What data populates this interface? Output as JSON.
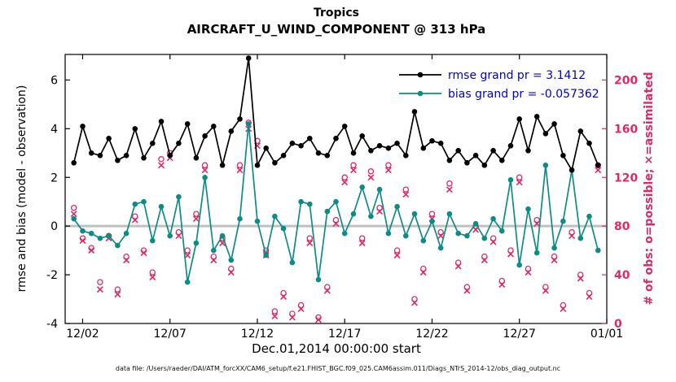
{
  "caption": "data file: /Users/raeder/DAI/ATM_forcXX/CAM6_setup/f.e21.FHIST_BGC.f09_025.CAM6assim.011/Diags_NTrS_2014-12/obs_diag_output.nc",
  "colors": {
    "rmse": "#000000",
    "bias": "#0d8c85",
    "obs": "#dd2a66",
    "legend_text": "#0000cc",
    "zero_line": "#c0c0c0",
    "axis": "#000000"
  },
  "legend": [
    {
      "series": "rmse",
      "label": "rmse grand pr = 3.1412",
      "color": "#000000"
    },
    {
      "series": "bias",
      "label": "bias grand pr = -0.057362",
      "color": "#0d8c85"
    }
  ],
  "axes": {
    "left_ticks": [
      -4,
      -2,
      0,
      2,
      4,
      6
    ],
    "right_ticks": [
      0,
      40,
      80,
      120,
      160,
      200
    ],
    "x_ticks": [
      {
        "t": 1,
        "label": "12/02"
      },
      {
        "t": 6,
        "label": "12/07"
      },
      {
        "t": 11,
        "label": "12/12"
      },
      {
        "t": 16,
        "label": "12/17"
      },
      {
        "t": 21,
        "label": "12/22"
      },
      {
        "t": 26,
        "label": "12/27"
      },
      {
        "t": 31,
        "label": "01/01"
      }
    ]
  },
  "chart_data": {
    "type": "line",
    "title": "Tropics",
    "subtitle": "AIRCRAFT_U_WIND_COMPONENT @ 313 hPa",
    "xlabel": "Dec.01,2014 00:00:00 start",
    "ylabel_left": "rmse and bias (model - observation)",
    "ylabel_right": "# of obs: o=possible; ×=assimilated",
    "xlim": [
      0,
      31
    ],
    "ylim_left": [
      -4,
      7.05
    ],
    "ylim_right": [
      0,
      221
    ],
    "x_units": "days since Dec.01,2014 00:00:00",
    "x": [
      0.5,
      1,
      1.5,
      2,
      2.5,
      3,
      3.5,
      4,
      4.5,
      5,
      5.5,
      6,
      6.5,
      7,
      7.5,
      8,
      8.5,
      9,
      9.5,
      10,
      10.5,
      11,
      11.5,
      12,
      12.5,
      13,
      13.5,
      14,
      14.5,
      15,
      15.5,
      16,
      16.5,
      17,
      17.5,
      18,
      18.5,
      19,
      19.5,
      20,
      20.5,
      21,
      21.5,
      22,
      22.5,
      23,
      23.5,
      24,
      24.5,
      25,
      25.5,
      26,
      26.5,
      27,
      27.5,
      28,
      28.5,
      29,
      29.5,
      30,
      30.5
    ],
    "series": [
      {
        "name": "rmse",
        "axis": "left",
        "style": "line+dot",
        "grand_value": 3.1412,
        "values": [
          2.6,
          4.1,
          3.0,
          2.9,
          3.6,
          2.7,
          2.9,
          4.0,
          2.8,
          3.4,
          4.3,
          2.9,
          3.4,
          4.2,
          2.8,
          3.7,
          4.1,
          2.5,
          3.9,
          4.4,
          6.9,
          2.5,
          3.2,
          2.6,
          2.9,
          3.4,
          3.3,
          3.6,
          3.0,
          2.9,
          3.6,
          4.1,
          3.0,
          3.7,
          3.1,
          3.3,
          3.2,
          3.4,
          2.9,
          4.7,
          3.2,
          3.5,
          3.4,
          2.7,
          3.1,
          2.6,
          2.9,
          2.5,
          3.1,
          2.7,
          3.3,
          4.4,
          3.1,
          4.5,
          3.8,
          4.2,
          2.9,
          2.3,
          3.9,
          3.4,
          2.5
        ]
      },
      {
        "name": "bias",
        "axis": "left",
        "style": "line+dot",
        "grand_value": -0.057362,
        "values": [
          0.3,
          -0.2,
          -0.3,
          -0.5,
          -0.4,
          -0.8,
          -0.3,
          0.9,
          1.0,
          -0.6,
          0.8,
          -0.4,
          1.2,
          -2.3,
          -0.7,
          2.0,
          -1.0,
          -0.4,
          -1.4,
          0.3,
          4.2,
          0.2,
          -1.2,
          0.4,
          -0.1,
          -1.5,
          1.0,
          0.9,
          -2.2,
          0.6,
          1.0,
          -0.3,
          0.5,
          1.6,
          0.4,
          1.5,
          -0.3,
          0.8,
          -0.4,
          0.5,
          -0.6,
          0.2,
          -0.9,
          0.5,
          -0.3,
          -0.4,
          0.1,
          -0.5,
          0.3,
          -0.2,
          1.9,
          -1.6,
          0.7,
          -1.1,
          2.5,
          -0.9,
          0.2,
          2.3,
          -0.5,
          0.4,
          -1.0
        ]
      },
      {
        "name": "possible",
        "axis": "right",
        "style": "marker-o",
        "values": [
          95,
          70,
          62,
          34,
          72,
          28,
          55,
          88,
          60,
          42,
          135,
          140,
          75,
          60,
          90,
          130,
          55,
          70,
          45,
          130,
          165,
          150,
          60,
          10,
          25,
          8,
          15,
          70,
          5,
          30,
          85,
          120,
          130,
          70,
          125,
          95,
          130,
          60,
          110,
          20,
          45,
          90,
          75,
          115,
          50,
          30,
          80,
          55,
          70,
          35,
          60,
          120,
          45,
          85,
          30,
          55,
          15,
          75,
          40,
          25,
          130
        ]
      },
      {
        "name": "assimilated",
        "axis": "right",
        "style": "marker-x",
        "values": [
          90,
          68,
          60,
          28,
          70,
          24,
          52,
          85,
          58,
          38,
          130,
          136,
          72,
          56,
          86,
          126,
          52,
          66,
          42,
          126,
          160,
          146,
          56,
          6,
          22,
          5,
          12,
          66,
          3,
          27,
          82,
          116,
          126,
          66,
          120,
          92,
          126,
          56,
          106,
          17,
          42,
          86,
          72,
          110,
          47,
          27,
          77,
          52,
          67,
          32,
          57,
          116,
          42,
          82,
          27,
          52,
          12,
          72,
          37,
          22,
          126
        ]
      }
    ]
  }
}
